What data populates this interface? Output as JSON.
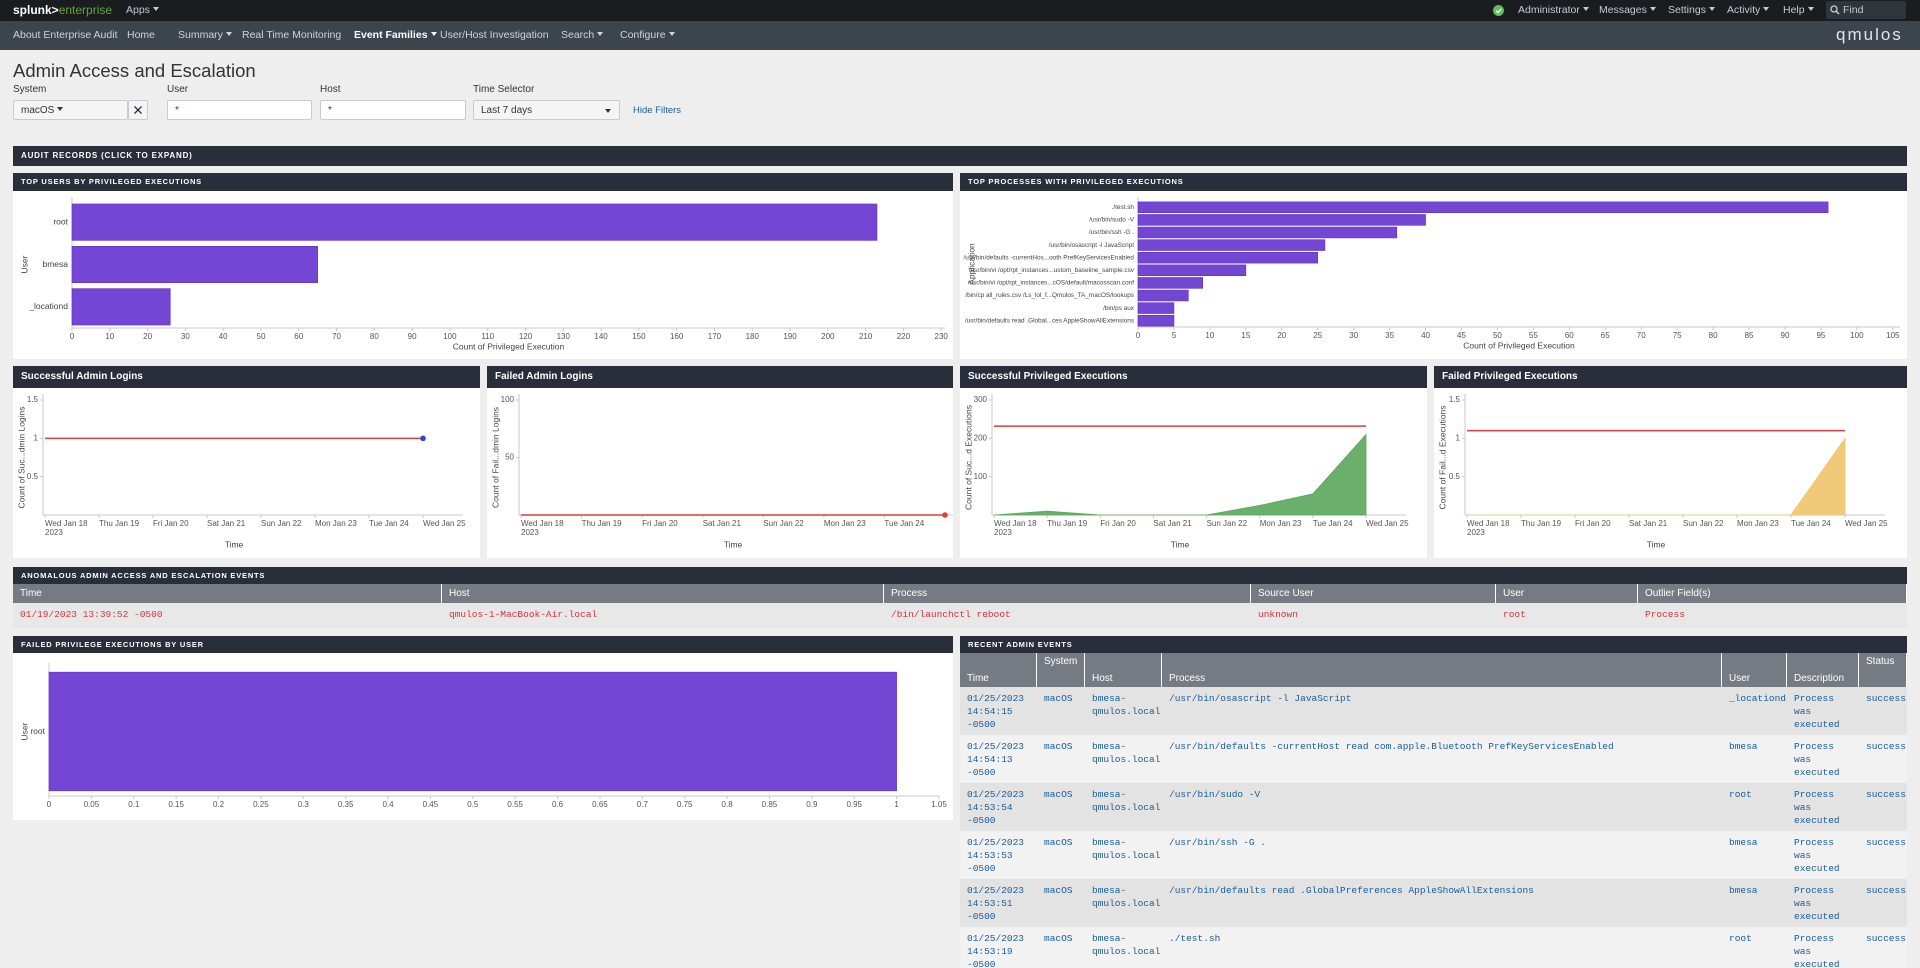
{
  "nav": {
    "logo_main": "splunk>",
    "logo_sub": "enterprise",
    "apps": "Apps",
    "menu": [
      "Administrator",
      "Messages",
      "Settings",
      "Activity",
      "Help"
    ],
    "find": "Find"
  },
  "app_bar": {
    "items": [
      "About Enterprise Audit",
      "Home",
      "Summary",
      "Real Time Monitoring",
      "Event Families",
      "User/Host Investigation",
      "Search",
      "Configure"
    ],
    "brand": "qmulos"
  },
  "page_title": "Admin Access and Escalation",
  "filters": [
    {
      "label": "System",
      "value": "macOS"
    },
    {
      "label": "User",
      "value": "*"
    },
    {
      "label": "Host",
      "value": "*"
    },
    {
      "label": "Time Selector",
      "value": "Last 7 days"
    }
  ],
  "hide_filters": "Hide Filters",
  "audit_bar": "AUDIT RECORDS (CLICK TO EXPAND)",
  "chart_data": [
    {
      "type": "bar",
      "orientation": "horizontal",
      "title": "TOP USERS BY PRIVILEGED EXECUTIONS",
      "categories": [
        "root",
        "bmesa",
        "_locationd"
      ],
      "values": [
        213,
        65,
        26
      ],
      "color": "#7446d4",
      "x_label": "Count of Privileged Execution",
      "y_label": "User",
      "xlim": [
        0,
        231
      ],
      "xticks": [
        0,
        10,
        20,
        30,
        40,
        50,
        60,
        70,
        80,
        90,
        100,
        110,
        120,
        130,
        140,
        150,
        160,
        170,
        180,
        190,
        200,
        210,
        220,
        230
      ]
    },
    {
      "type": "bar",
      "orientation": "horizontal",
      "title": "TOP PROCESSES WITH PRIVILEGED EXECUTIONS",
      "categories": [
        "./test.sh",
        "/usr/bin/sudo -V",
        "/usr/bin/ssh -G .",
        "/usr/bin/osascript -l JavaScript",
        "/usr/bin/defaults -currentHos...ooth PrefKeyServicesEnabled",
        "/usr/bin/vi /opt/rpt_instances...ustom_baseline_sample.csv",
        "/usr/bin/vi /opt/rpt_instances...cOS/default/macosscan.conf",
        "/bin/cp all_rules.csv /Ls_lol_f...Qmulos_TA_macOS/lookups",
        "/bin/ps aux",
        "/usr/bin/defaults read .Global...ces AppleShowAllExtensions"
      ],
      "values": [
        96,
        40,
        36,
        26,
        25,
        15,
        9,
        7,
        5,
        5
      ],
      "color": "#7446d4",
      "x_label": "Count of Privileged Execution",
      "y_label": "Application",
      "xlim": [
        0,
        106
      ],
      "xticks": [
        0,
        5,
        10,
        15,
        20,
        25,
        30,
        35,
        40,
        45,
        50,
        55,
        60,
        65,
        70,
        75,
        80,
        85,
        90,
        95,
        100,
        105
      ]
    },
    {
      "type": "line",
      "title": "Successful Admin Logins",
      "categories": [
        "Wed Jan 18",
        "Thu Jan 19",
        "Fri Jan 20",
        "Sat Jan 21",
        "Sun Jan 22",
        "Mon Jan 23",
        "Tue Jan 24",
        "Wed Jan 25"
      ],
      "xtick_sublabel": "2023",
      "series": [
        {
          "type": "line",
          "color": "#d93f3c",
          "end_marker_color": "#3b3bd6",
          "values": [
            1,
            1,
            1,
            1,
            1,
            1,
            1,
            1
          ]
        }
      ],
      "x_label": "Time",
      "y_label": "Count of Suc...dmin Logins",
      "ylim": [
        0,
        1.5
      ],
      "yticks": [
        0.5,
        1,
        1.5
      ]
    },
    {
      "type": "line",
      "title": "Failed Admin Logins",
      "categories": [
        "Wed Jan 18",
        "Thu Jan 19",
        "Fri Jan 20",
        "Sat Jan 21",
        "Sun Jan 22",
        "Mon Jan 23",
        "Tue Jan 24",
        null
      ],
      "xtick_sublabel": "2023",
      "series": [
        {
          "type": "line",
          "color": "#d93f3c",
          "end_marker_color": "#d93f3c",
          "values": [
            0,
            0,
            0,
            0,
            0,
            0,
            0,
            0
          ]
        }
      ],
      "x_label": "Time",
      "y_label": "Count of Fail...dmin Logins",
      "ylim": [
        0,
        100
      ],
      "yticks": [
        50,
        100
      ]
    },
    {
      "type": "line",
      "title": "Successful Privileged Executions",
      "categories": [
        "Wed Jan 18",
        "Thu Jan 19",
        "Fri Jan 20",
        "Sat Jan 21",
        "Sun Jan 22",
        "Mon Jan 23",
        "Tue Jan 24",
        "Wed Jan 25"
      ],
      "xtick_sublabel": "2023",
      "series": [
        {
          "type": "area",
          "color": "#5aa65c",
          "values": [
            0,
            10,
            0,
            0,
            0,
            25,
            55,
            210
          ]
        },
        {
          "type": "line",
          "color": "#d93f3c",
          "values": [
            232,
            232,
            232,
            232,
            232,
            232,
            232,
            232
          ]
        }
      ],
      "x_label": "Time",
      "y_label": "Count of Suc...d Executions",
      "ylim": [
        0,
        300
      ],
      "yticks": [
        100,
        200,
        300
      ]
    },
    {
      "type": "line",
      "title": "Failed Privileged Executions",
      "categories": [
        "Wed Jan 18",
        "Thu Jan 19",
        "Fri Jan 20",
        "Sat Jan 21",
        "Sun Jan 22",
        "Mon Jan 23",
        "Tue Jan 24",
        "Wed Jan 25"
      ],
      "xtick_sublabel": "2023",
      "series": [
        {
          "type": "area",
          "color": "#f0c46a",
          "values": [
            0,
            0,
            0,
            0,
            0,
            0,
            0,
            1
          ]
        },
        {
          "type": "line",
          "color": "#d93f3c",
          "values": [
            1.1,
            1.1,
            1.1,
            1.1,
            1.1,
            1.1,
            1.1,
            1.1
          ]
        }
      ],
      "x_label": "Time",
      "y_label": "Count of Fail...d Executions",
      "ylim": [
        0,
        1.5
      ],
      "yticks": [
        0.5,
        1,
        1.5
      ]
    },
    {
      "type": "bar",
      "orientation": "horizontal",
      "title": "FAILED PRIVILEGE EXECUTIONS BY USER",
      "categories": [
        "root"
      ],
      "values": [
        1
      ],
      "color": "#7446d4",
      "y_label": "User",
      "xlim": [
        0,
        1.05
      ],
      "xticks": [
        0,
        0.05,
        0.1,
        0.15,
        0.2,
        0.25,
        0.3,
        0.35,
        0.4,
        0.45,
        0.5,
        0.55,
        0.6,
        0.65,
        0.7,
        0.75,
        0.8,
        0.85,
        0.9,
        0.95,
        1,
        1.05
      ]
    }
  ],
  "anomalous_events": {
    "title": "ANOMALOUS ADMIN ACCESS AND ESCALATION EVENTS",
    "columns": [
      "Time",
      "Host",
      "Process",
      "Source User",
      "User",
      "Outlier Field(s)"
    ],
    "rows": [
      [
        "01/19/2023 13:39:52 -0500",
        "qmulos-1-MacBook-Air.local",
        "/bin/launchctl reboot",
        "unknown",
        "root",
        "Process"
      ]
    ]
  },
  "recent_admin_events": {
    "title": "RECENT ADMIN EVENTS",
    "columns": [
      "Time",
      "System",
      "Host",
      "Process",
      "User",
      "Description",
      "Status"
    ],
    "rows": [
      [
        "01/25/2023 14:54:15 -0500",
        "macOS",
        "bmesa-qmulos.local",
        "/usr/bin/osascript -l JavaScript",
        "_locationd",
        "Process was executed",
        "success"
      ],
      [
        "01/25/2023 14:54:13 -0500",
        "macOS",
        "bmesa-qmulos.local",
        "/usr/bin/defaults -currentHost read com.apple.Bluetooth PrefKeyServicesEnabled",
        "bmesa",
        "Process was executed",
        "success"
      ],
      [
        "01/25/2023 14:53:54 -0500",
        "macOS",
        "bmesa-qmulos.local",
        "/usr/bin/sudo -V",
        "root",
        "Process was executed",
        "success"
      ],
      [
        "01/25/2023 14:53:53 -0500",
        "macOS",
        "bmesa-qmulos.local",
        "/usr/bin/ssh -G .",
        "bmesa",
        "Process was executed",
        "success"
      ],
      [
        "01/25/2023 14:53:51 -0500",
        "macOS",
        "bmesa-qmulos.local",
        "/usr/bin/defaults read .GlobalPreferences AppleShowAllExtensions",
        "bmesa",
        "Process was executed",
        "success"
      ],
      [
        "01/25/2023 14:53:19 -0500",
        "macOS",
        "bmesa-qmulos.local",
        "./test.sh",
        "root",
        "Process was executed",
        "success"
      ]
    ]
  }
}
